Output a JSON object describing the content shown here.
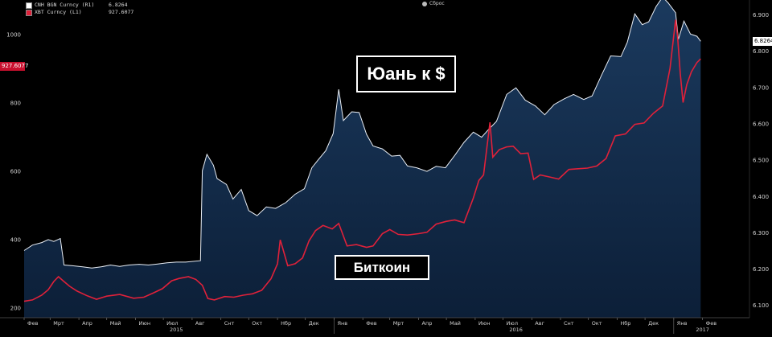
{
  "legend": [
    {
      "label": "CNH BGN Curncy  (R1)",
      "value": "6.8264",
      "color": "#ffffff"
    },
    {
      "label": "XBT Curncy  (L1)",
      "value": "927.6077",
      "color": "#e0213a"
    }
  ],
  "reset_label": "Сброс",
  "callouts": {
    "yuan": "Юань к $",
    "bitcoin": "Биткоин"
  },
  "last_tags": {
    "left": "927.6077",
    "right": "6.8264"
  },
  "colors": {
    "background": "#000000",
    "area_top": "#1b3a5e",
    "area_bottom": "#0c1f38",
    "yuan_line": "#e9eef5",
    "btc_line": "#e0213a"
  },
  "chart_data": {
    "type": "line",
    "x_labels": [
      "Фев",
      "Мрт",
      "Апр",
      "Май",
      "Июн",
      "Июл",
      "Авг",
      "Снт",
      "Окт",
      "Нбр",
      "Дек",
      "Янв",
      "Фев",
      "Мрт",
      "Апр",
      "Май",
      "Июн",
      "Июл",
      "Авг",
      "Снт",
      "Окт",
      "Нбр",
      "Дек",
      "Янв",
      "Фев"
    ],
    "year_labels": [
      "2015",
      "2016",
      "2017"
    ],
    "x_range": [
      "2015-02-01",
      "2017-02-10"
    ],
    "y_left": {
      "ticks": [
        200,
        400,
        600,
        800,
        1000
      ],
      "range": [
        170,
        1100
      ]
    },
    "y_right": {
      "ticks": [
        6.1,
        6.2,
        6.3,
        6.4,
        6.5,
        6.6,
        6.7,
        6.8,
        6.9
      ],
      "range": [
        6.065,
        6.94
      ]
    },
    "series": [
      {
        "name": "CNH BGN Curncy",
        "axis": "right",
        "style": "area",
        "points": [
          [
            "2015-02-01",
            6.25
          ],
          [
            "2015-02-10",
            6.265
          ],
          [
            "2015-02-20",
            6.272
          ],
          [
            "2015-02-27",
            6.28
          ],
          [
            "2015-03-05",
            6.275
          ],
          [
            "2015-03-12",
            6.283
          ],
          [
            "2015-03-16",
            6.21
          ],
          [
            "2015-03-25",
            6.208
          ],
          [
            "2015-04-05",
            6.205
          ],
          [
            "2015-04-15",
            6.202
          ],
          [
            "2015-04-25",
            6.205
          ],
          [
            "2015-05-05",
            6.21
          ],
          [
            "2015-05-15",
            6.206
          ],
          [
            "2015-05-25",
            6.21
          ],
          [
            "2015-06-05",
            6.212
          ],
          [
            "2015-06-15",
            6.21
          ],
          [
            "2015-06-25",
            6.213
          ],
          [
            "2015-07-05",
            6.216
          ],
          [
            "2015-07-15",
            6.218
          ],
          [
            "2015-07-25",
            6.218
          ],
          [
            "2015-08-10",
            6.222
          ],
          [
            "2015-08-12",
            6.47
          ],
          [
            "2015-08-17",
            6.515
          ],
          [
            "2015-08-24",
            6.485
          ],
          [
            "2015-08-28",
            6.448
          ],
          [
            "2015-09-07",
            6.432
          ],
          [
            "2015-09-14",
            6.392
          ],
          [
            "2015-09-23",
            6.418
          ],
          [
            "2015-10-01",
            6.36
          ],
          [
            "2015-10-10",
            6.346
          ],
          [
            "2015-10-20",
            6.37
          ],
          [
            "2015-10-30",
            6.366
          ],
          [
            "2015-11-10",
            6.382
          ],
          [
            "2015-11-20",
            6.405
          ],
          [
            "2015-11-30",
            6.42
          ],
          [
            "2015-12-08",
            6.478
          ],
          [
            "2015-12-15",
            6.5
          ],
          [
            "2015-12-23",
            6.525
          ],
          [
            "2015-12-31",
            6.572
          ],
          [
            "2016-01-06",
            6.694
          ],
          [
            "2016-01-11",
            6.608
          ],
          [
            "2016-01-20",
            6.632
          ],
          [
            "2016-01-28",
            6.63
          ],
          [
            "2016-02-05",
            6.57
          ],
          [
            "2016-02-12",
            6.538
          ],
          [
            "2016-02-22",
            6.53
          ],
          [
            "2016-03-03",
            6.51
          ],
          [
            "2016-03-12",
            6.512
          ],
          [
            "2016-03-20",
            6.483
          ],
          [
            "2016-03-30",
            6.478
          ],
          [
            "2016-04-10",
            6.468
          ],
          [
            "2016-04-20",
            6.482
          ],
          [
            "2016-04-30",
            6.478
          ],
          [
            "2016-05-10",
            6.512
          ],
          [
            "2016-05-20",
            6.548
          ],
          [
            "2016-05-30",
            6.576
          ],
          [
            "2016-06-08",
            6.562
          ],
          [
            "2016-06-15",
            6.582
          ],
          [
            "2016-06-24",
            6.606
          ],
          [
            "2016-07-05",
            6.68
          ],
          [
            "2016-07-15",
            6.698
          ],
          [
            "2016-07-25",
            6.664
          ],
          [
            "2016-08-05",
            6.648
          ],
          [
            "2016-08-15",
            6.624
          ],
          [
            "2016-08-25",
            6.652
          ],
          [
            "2016-09-05",
            6.668
          ],
          [
            "2016-09-15",
            6.68
          ],
          [
            "2016-09-26",
            6.666
          ],
          [
            "2016-10-05",
            6.676
          ],
          [
            "2016-10-15",
            6.732
          ],
          [
            "2016-10-25",
            6.786
          ],
          [
            "2016-11-05",
            6.784
          ],
          [
            "2016-11-12",
            6.824
          ],
          [
            "2016-11-20",
            6.902
          ],
          [
            "2016-11-28",
            6.872
          ],
          [
            "2016-12-05",
            6.88
          ],
          [
            "2016-12-13",
            6.922
          ],
          [
            "2016-12-20",
            6.948
          ],
          [
            "2016-12-26",
            6.932
          ],
          [
            "2017-01-03",
            6.905
          ],
          [
            "2017-01-06",
            6.832
          ],
          [
            "2017-01-12",
            6.882
          ],
          [
            "2017-01-19",
            6.846
          ],
          [
            "2017-01-26",
            6.84
          ],
          [
            "2017-01-30",
            6.8264
          ]
        ]
      },
      {
        "name": "XBT Curncy",
        "axis": "left",
        "style": "line",
        "points": [
          [
            "2015-02-01",
            218
          ],
          [
            "2015-02-10",
            222
          ],
          [
            "2015-02-20",
            236
          ],
          [
            "2015-02-27",
            252
          ],
          [
            "2015-03-05",
            276
          ],
          [
            "2015-03-10",
            290
          ],
          [
            "2015-03-15",
            278
          ],
          [
            "2015-03-22",
            262
          ],
          [
            "2015-03-30",
            248
          ],
          [
            "2015-04-10",
            234
          ],
          [
            "2015-04-20",
            224
          ],
          [
            "2015-05-01",
            233
          ],
          [
            "2015-05-15",
            238
          ],
          [
            "2015-05-30",
            227
          ],
          [
            "2015-06-10",
            230
          ],
          [
            "2015-06-20",
            242
          ],
          [
            "2015-06-30",
            255
          ],
          [
            "2015-07-10",
            278
          ],
          [
            "2015-07-18",
            285
          ],
          [
            "2015-07-28",
            290
          ],
          [
            "2015-08-05",
            282
          ],
          [
            "2015-08-12",
            265
          ],
          [
            "2015-08-18",
            226
          ],
          [
            "2015-08-25",
            222
          ],
          [
            "2015-09-05",
            232
          ],
          [
            "2015-09-15",
            230
          ],
          [
            "2015-09-25",
            236
          ],
          [
            "2015-10-05",
            240
          ],
          [
            "2015-10-15",
            250
          ],
          [
            "2015-10-25",
            284
          ],
          [
            "2015-11-01",
            328
          ],
          [
            "2015-11-04",
            398
          ],
          [
            "2015-11-07",
            370
          ],
          [
            "2015-11-12",
            322
          ],
          [
            "2015-11-20",
            328
          ],
          [
            "2015-11-28",
            345
          ],
          [
            "2015-12-05",
            395
          ],
          [
            "2015-12-12",
            425
          ],
          [
            "2015-12-20",
            440
          ],
          [
            "2015-12-30",
            430
          ],
          [
            "2016-01-06",
            446
          ],
          [
            "2016-01-15",
            380
          ],
          [
            "2016-01-25",
            384
          ],
          [
            "2016-02-05",
            376
          ],
          [
            "2016-02-12",
            380
          ],
          [
            "2016-02-22",
            416
          ],
          [
            "2016-03-01",
            428
          ],
          [
            "2016-03-10",
            414
          ],
          [
            "2016-03-20",
            412
          ],
          [
            "2016-04-01",
            416
          ],
          [
            "2016-04-10",
            420
          ],
          [
            "2016-04-20",
            444
          ],
          [
            "2016-05-01",
            452
          ],
          [
            "2016-05-10",
            456
          ],
          [
            "2016-05-20",
            448
          ],
          [
            "2016-05-30",
            520
          ],
          [
            "2016-06-05",
            572
          ],
          [
            "2016-06-10",
            588
          ],
          [
            "2016-06-17",
            742
          ],
          [
            "2016-06-20",
            640
          ],
          [
            "2016-06-27",
            662
          ],
          [
            "2016-07-05",
            670
          ],
          [
            "2016-07-12",
            672
          ],
          [
            "2016-07-20",
            650
          ],
          [
            "2016-07-28",
            652
          ],
          [
            "2016-08-03",
            575
          ],
          [
            "2016-08-10",
            588
          ],
          [
            "2016-08-20",
            582
          ],
          [
            "2016-08-30",
            576
          ],
          [
            "2016-09-10",
            604
          ],
          [
            "2016-09-20",
            606
          ],
          [
            "2016-09-30",
            608
          ],
          [
            "2016-10-10",
            614
          ],
          [
            "2016-10-20",
            636
          ],
          [
            "2016-10-30",
            702
          ],
          [
            "2016-11-10",
            708
          ],
          [
            "2016-11-20",
            736
          ],
          [
            "2016-11-30",
            740
          ],
          [
            "2016-12-10",
            768
          ],
          [
            "2016-12-20",
            790
          ],
          [
            "2016-12-28",
            900
          ],
          [
            "2017-01-03",
            1042
          ],
          [
            "2017-01-05",
            995
          ],
          [
            "2017-01-08",
            886
          ],
          [
            "2017-01-11",
            800
          ],
          [
            "2017-01-15",
            852
          ],
          [
            "2017-01-20",
            890
          ],
          [
            "2017-01-26",
            917
          ],
          [
            "2017-01-30",
            927.6
          ]
        ]
      }
    ]
  }
}
